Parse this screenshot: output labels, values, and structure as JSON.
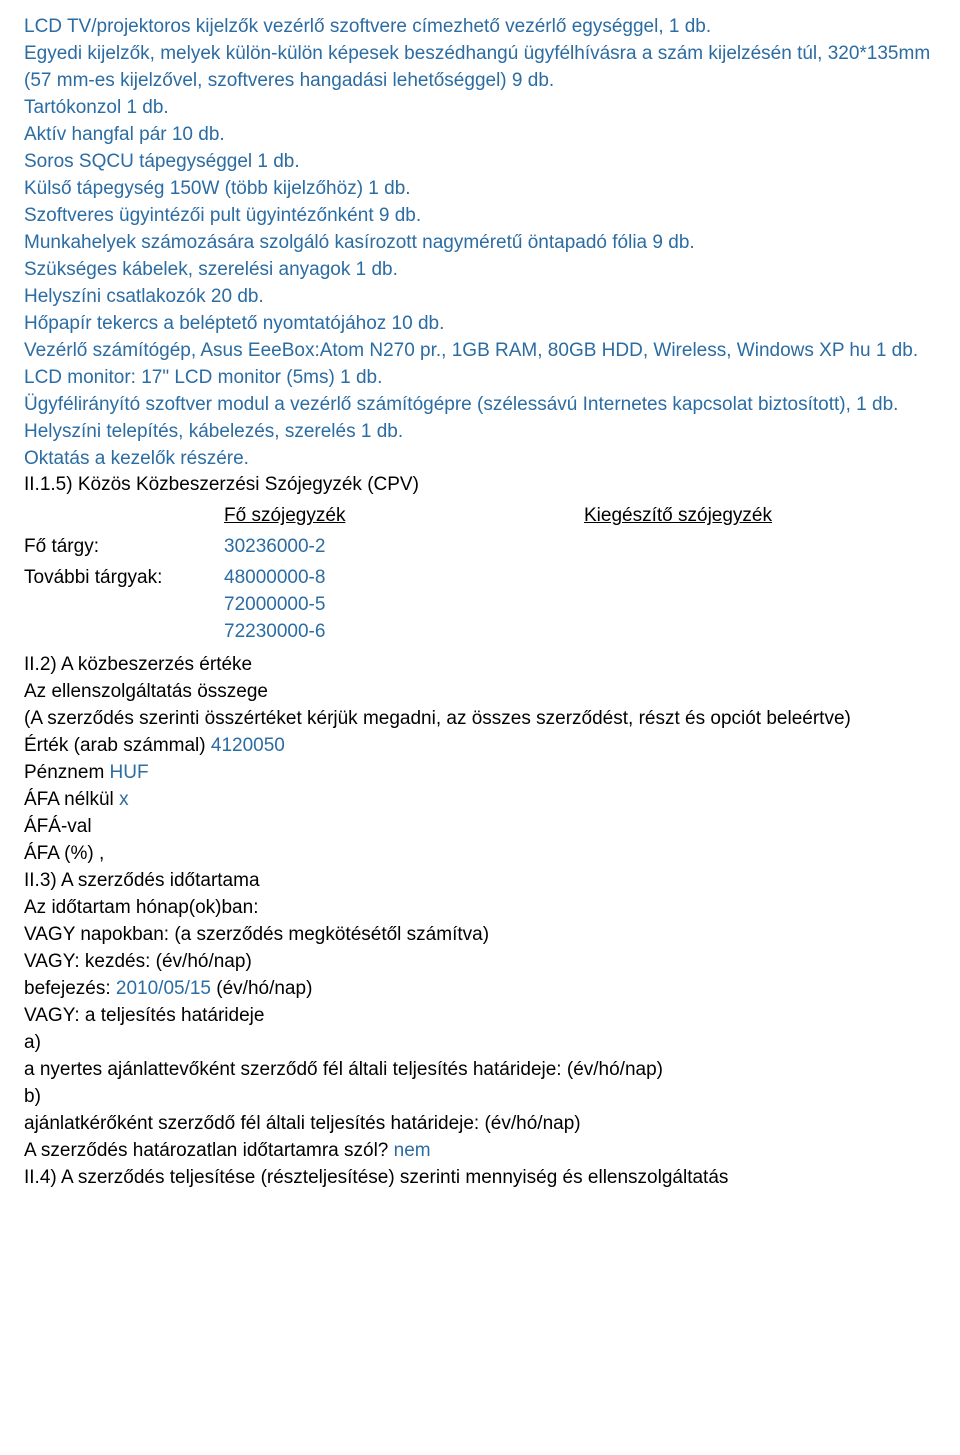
{
  "lines": [
    "LCD TV/projektoros kijelzők vezérlő szoftvere címezhető vezérlő egységgel, 1 db.",
    "Egyedi kijelzők, melyek külön-külön képesek beszédhangú ügyfélhívásra a szám kijelzésén túl, 320*135mm (57 mm-es kijelzővel, szoftveres hangadási lehetőséggel) 9 db.",
    "Tartókonzol 1 db.",
    "Aktív hangfal pár 10 db.",
    "Soros SQCU tápegységgel 1 db.",
    "Külső tápegység 150W (több kijelzőhöz) 1 db.",
    "Szoftveres ügyintézői pult ügyintézőnként 9 db.",
    "Munkahelyek számozására szolgáló kasírozott nagyméretű öntapadó fólia 9 db.",
    "Szükséges kábelek, szerelési anyagok 1 db.",
    "Helyszíni csatlakozók 20 db.",
    "Hőpapír tekercs a beléptető nyomtatójához 10 db.",
    "Vezérlő számítógép, Asus EeeBox:Atom N270 pr., 1GB RAM, 80GB HDD, Wireless, Windows XP hu 1 db.",
    "LCD monitor: 17\" LCD monitor (5ms) 1 db.",
    "Ügyfélirányító szoftver modul a vezérlő számítógépre (szélessávú Internetes kapcsolat biztosított), 1 db.",
    "Helyszíni telepítés, kábelezés, szerelés 1 db.",
    "Oktatás a kezelők részére."
  ],
  "cpv_heading": "II.1.5) Közös Közbeszerzési Szójegyzék (CPV)",
  "table": {
    "header_main": "Fő szójegyzék",
    "header_sup": "Kiegészítő szójegyzék",
    "row1_label": "Fő tárgy:",
    "row1_value": "30236000-2",
    "row2_label": "További tárgyak:",
    "row2_values": [
      "48000000-8",
      "72000000-5",
      "72230000-6"
    ]
  },
  "section2": {
    "heading": "II.2) A közbeszerzés értéke",
    "l1": "Az ellenszolgáltatás összege",
    "l2": "(A szerződés szerinti összértéket kérjük megadni, az összes szerződést, részt és opciót beleértve)",
    "l3_black": "Érték (arab számmal) ",
    "l3_blue": "4120050",
    "l4_black": "Pénznem ",
    "l4_blue": "HUF",
    "l5_black": "ÁFA nélkül ",
    "l5_blue": "x",
    "l6": "ÁFÁ-val",
    "l7": "ÁFA (%) ,"
  },
  "section3": {
    "heading": "II.3) A szerződés időtartama",
    "l1": "Az időtartam hónap(ok)ban:",
    "l2": "VAGY napokban: (a szerződés megkötésétől számítva)",
    "l3": "VAGY: kezdés: (év/hó/nap)",
    "l4_black_a": "befejezés: ",
    "l4_blue": "2010/05/15",
    "l4_black_b": " (év/hó/nap)",
    "l5": "VAGY: a teljesítés határideje",
    "l6": "a)",
    "l7": "a nyertes ajánlattevőként szerződő fél általi teljesítés határideje: (év/hó/nap)",
    "l8": "b)",
    "l9": "ajánlatkérőként szerződő fél általi teljesítés határideje: (év/hó/nap)",
    "l10_black": "A szerződés határozatlan időtartamra szól? ",
    "l10_blue": "nem"
  },
  "section4": {
    "heading": "II.4) A szerződés teljesítése (részteljesítése) szerinti mennyiség és ellenszolgáltatás"
  }
}
